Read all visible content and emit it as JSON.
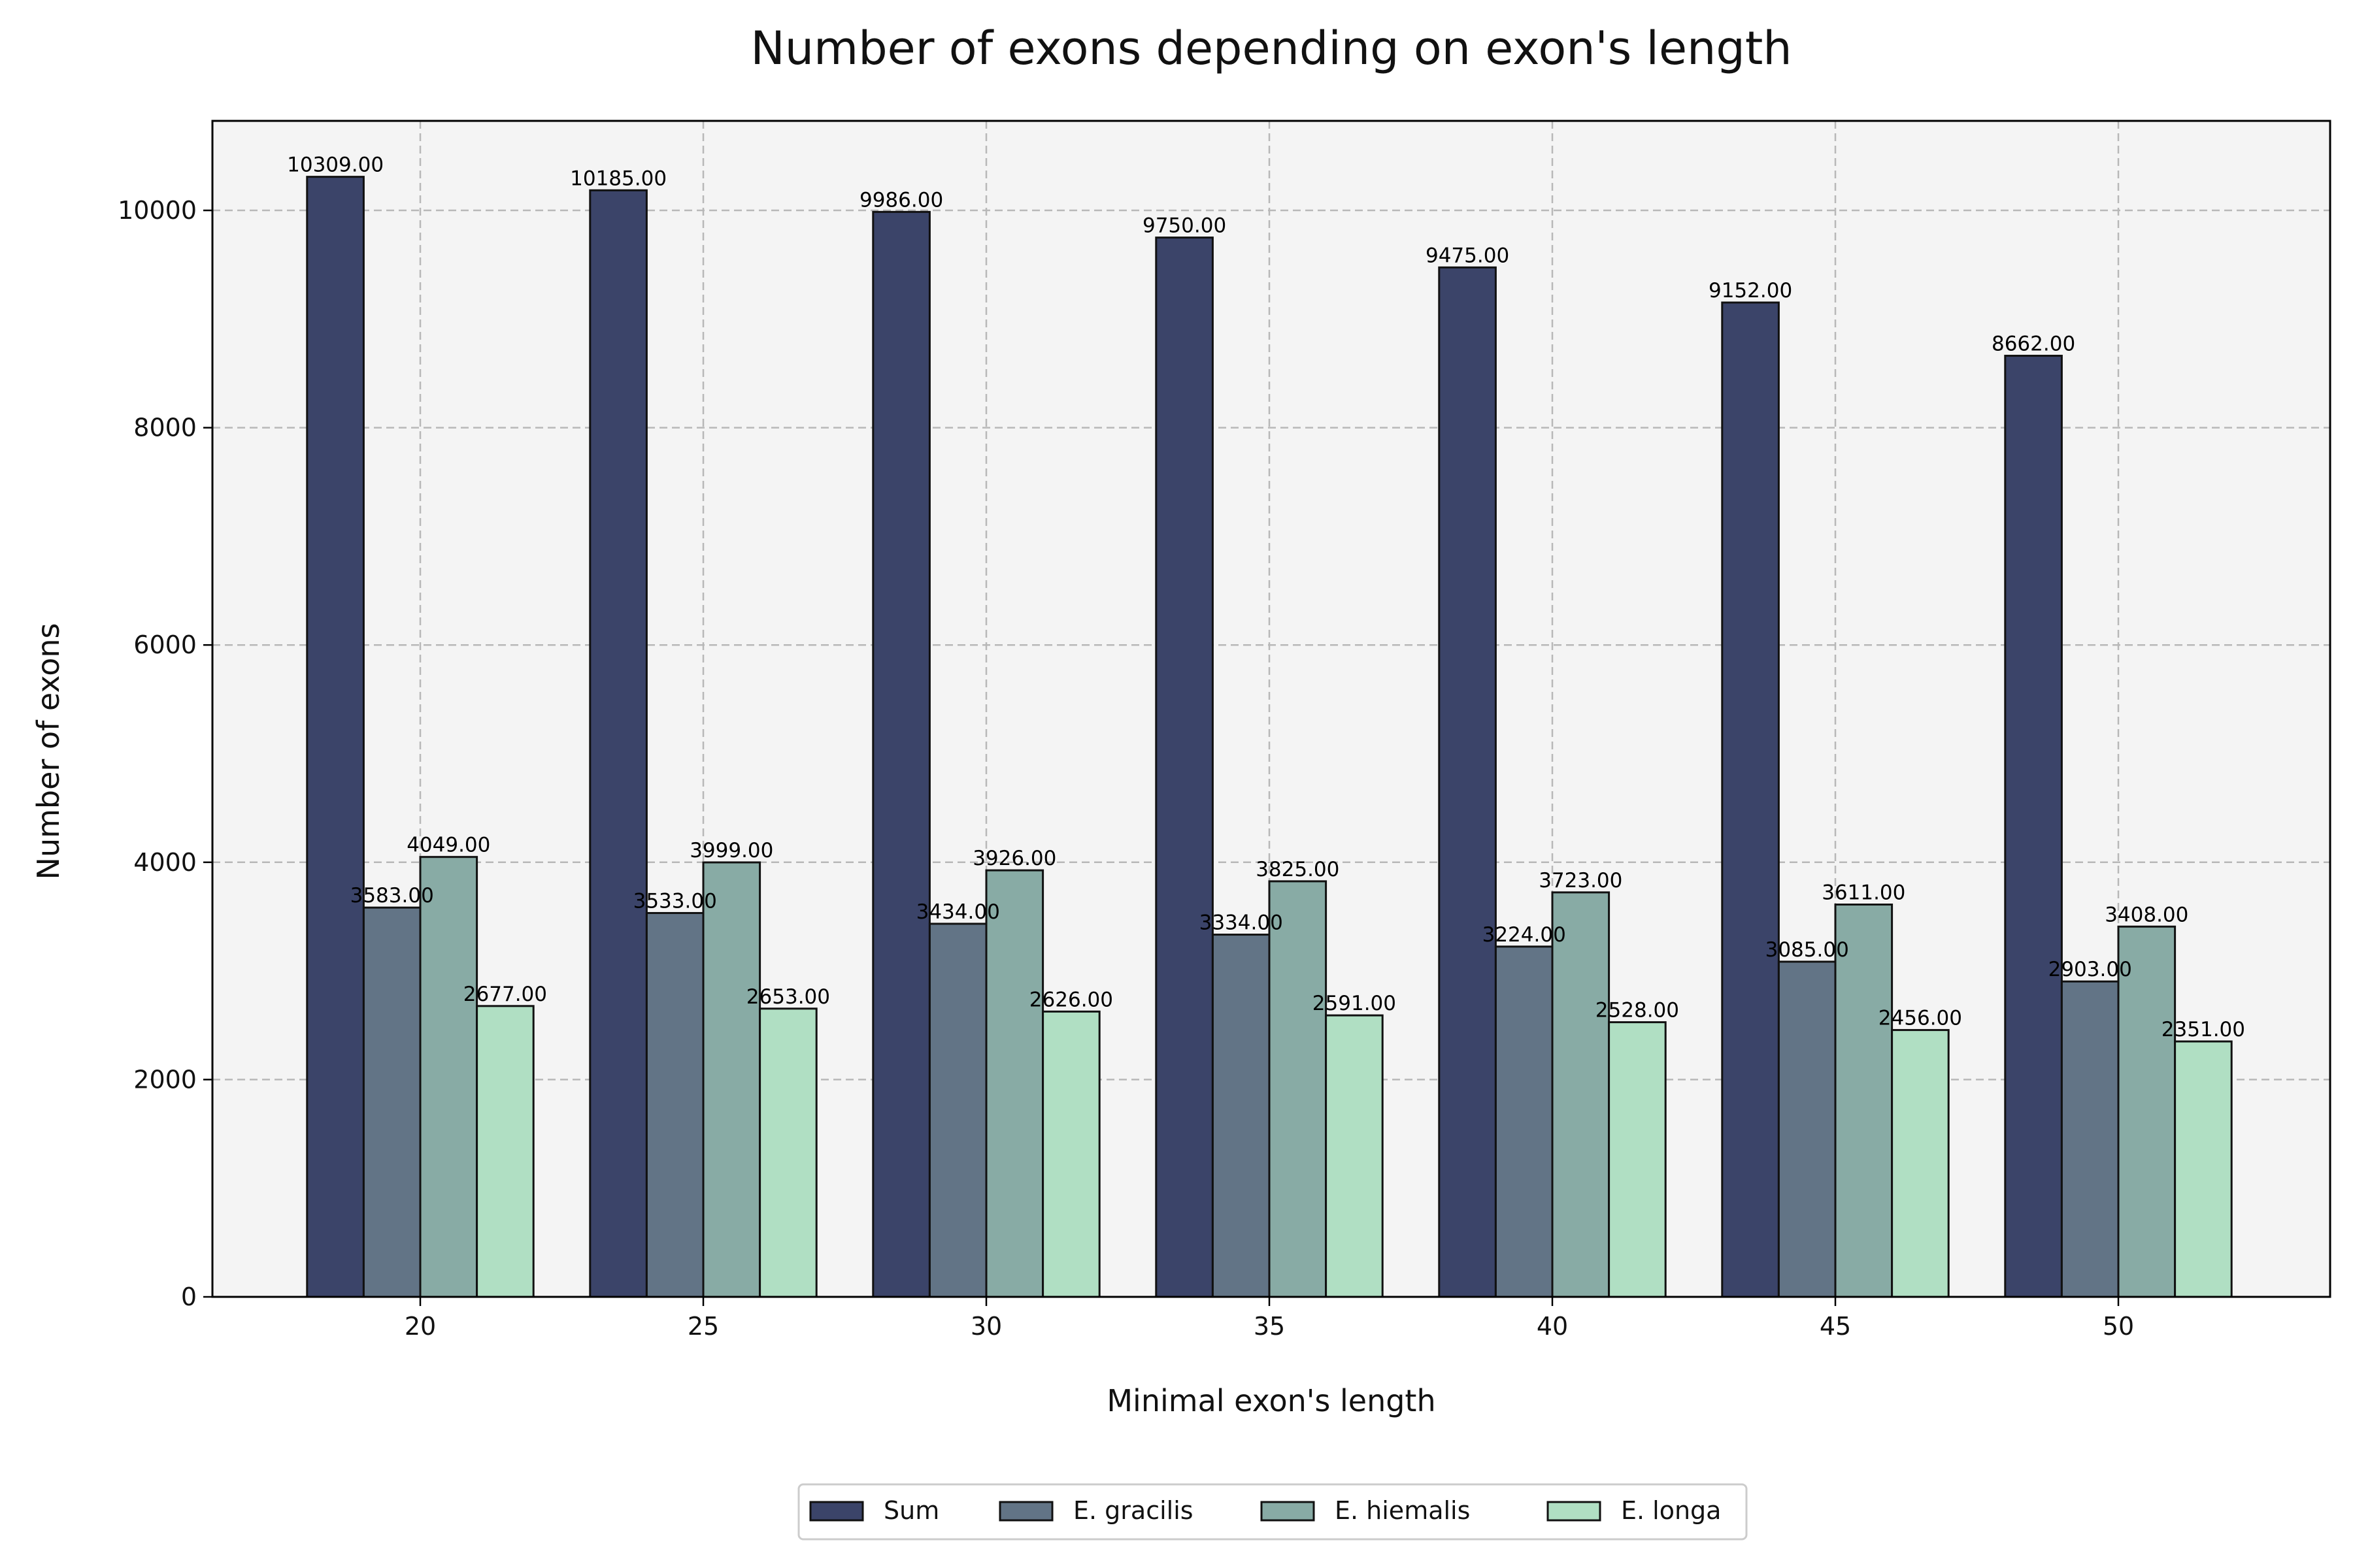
{
  "chart_data": {
    "type": "bar",
    "title": "Number of exons depending on exon's length",
    "xlabel": "Minimal exon's length",
    "ylabel": "Number of exons",
    "categories": [
      "20",
      "25",
      "30",
      "35",
      "40",
      "45",
      "50"
    ],
    "series": [
      {
        "name": "Sum",
        "color": "#3b4469",
        "values": [
          10309,
          10185,
          9986,
          9750,
          9475,
          9152,
          8662
        ]
      },
      {
        "name": "E. gracilis",
        "color": "#627486",
        "values": [
          3583,
          3533,
          3434,
          3334,
          3224,
          3085,
          2903
        ]
      },
      {
        "name": "E. hiemalis",
        "color": "#88aba5",
        "values": [
          4049,
          3999,
          3926,
          3825,
          3723,
          3611,
          3408
        ]
      },
      {
        "name": "E. longa",
        "color": "#b0dfc3",
        "values": [
          2677,
          2653,
          2626,
          2591,
          2528,
          2456,
          2351
        ]
      }
    ],
    "ylim": [
      0,
      10824
    ],
    "yticks": [
      0,
      2000,
      4000,
      6000,
      8000,
      10000
    ],
    "value_label_format": "2 decimals",
    "grid": true,
    "grid_style": "dashed",
    "plot_background": "#f4f4f4",
    "legend_placement": "bottom-center"
  }
}
